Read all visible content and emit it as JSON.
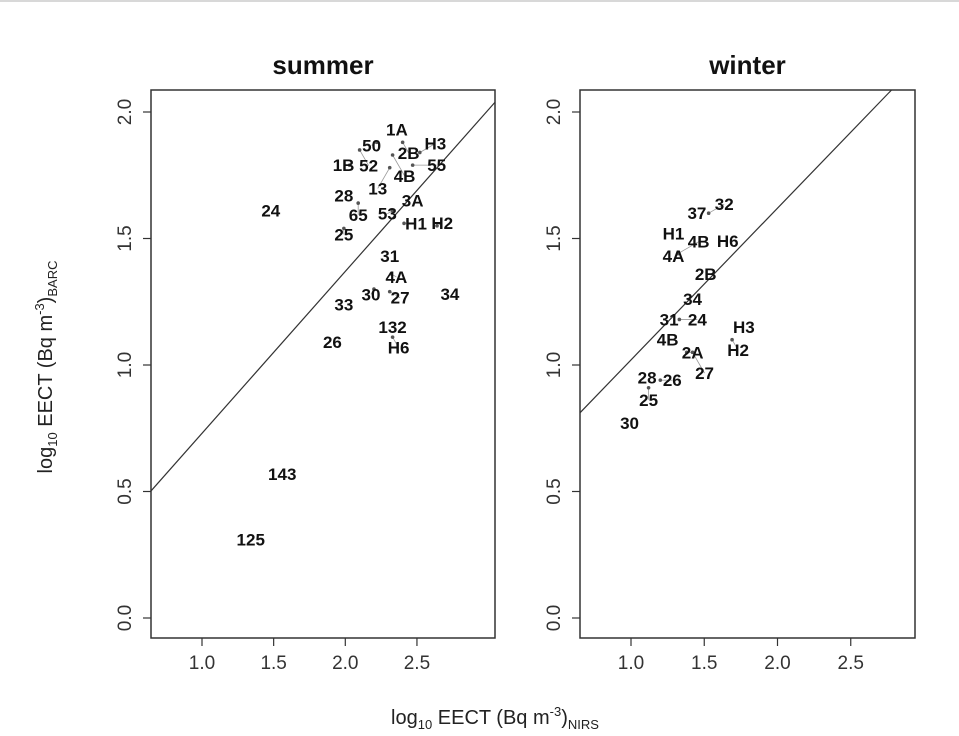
{
  "chart_data": [
    {
      "type": "scatter",
      "title": "summer",
      "xlim": [
        0.7,
        2.85
      ],
      "ylim": [
        -0.08,
        2.08
      ],
      "xticks": [
        "1.0",
        "1.5",
        "2.0",
        "2.5"
      ],
      "yticks": [
        "0.0",
        "0.5",
        "1.0",
        "1.5",
        "2.0"
      ],
      "line": {
        "intercept": 0.09,
        "slope": 0.64
      },
      "points": [
        {
          "label": "1A",
          "x": 2.36,
          "y": 1.93
        },
        {
          "label": "50",
          "x": 2.22,
          "y": 1.88
        },
        {
          "label": "2B",
          "x": 2.4,
          "y": 1.88
        },
        {
          "label": "52",
          "x": 2.1,
          "y": 1.85
        },
        {
          "label": "H3",
          "x": 2.52,
          "y": 1.84
        },
        {
          "label": "4B",
          "x": 2.33,
          "y": 1.83
        },
        {
          "label": "1B",
          "x": 2.03,
          "y": 1.79
        },
        {
          "label": "13",
          "x": 2.31,
          "y": 1.78
        },
        {
          "label": "55",
          "x": 2.47,
          "y": 1.79
        },
        {
          "label": "28",
          "x": 1.99,
          "y": 1.67
        },
        {
          "label": "65",
          "x": 2.09,
          "y": 1.64
        },
        {
          "label": "3A",
          "x": 2.47,
          "y": 1.65
        },
        {
          "label": "53",
          "x": 2.33,
          "y": 1.61
        },
        {
          "label": "H1",
          "x": 2.41,
          "y": 1.56
        },
        {
          "label": "H2",
          "x": 2.64,
          "y": 1.55
        },
        {
          "label": "24",
          "x": 1.48,
          "y": 1.61
        },
        {
          "label": "25",
          "x": 1.99,
          "y": 1.54
        },
        {
          "label": "31",
          "x": 2.31,
          "y": 1.43
        },
        {
          "label": "4A",
          "x": 2.32,
          "y": 1.36
        },
        {
          "label": "30",
          "x": 2.2,
          "y": 1.3
        },
        {
          "label": "27",
          "x": 2.31,
          "y": 1.29
        },
        {
          "label": "33",
          "x": 1.99,
          "y": 1.24
        },
        {
          "label": "34",
          "x": 2.73,
          "y": 1.28
        },
        {
          "label": "132",
          "x": 2.33,
          "y": 1.15
        },
        {
          "label": "H6",
          "x": 2.33,
          "y": 1.11
        },
        {
          "label": "26",
          "x": 1.91,
          "y": 1.09
        },
        {
          "label": "143",
          "x": 1.56,
          "y": 0.57
        },
        {
          "label": "125",
          "x": 1.34,
          "y": 0.31
        }
      ]
    },
    {
      "type": "scatter",
      "title": "winter",
      "xlim": [
        0.7,
        2.85
      ],
      "ylim": [
        -0.08,
        2.08
      ],
      "xticks": [
        "1.0",
        "1.5",
        "2.0",
        "2.5"
      ],
      "yticks": [
        "0.0",
        "0.5",
        "1.0",
        "1.5",
        "2.0"
      ],
      "line": {
        "intercept": 0.42,
        "slope": 0.6
      },
      "points": [
        {
          "label": "37",
          "x": 1.45,
          "y": 1.6
        },
        {
          "label": "32",
          "x": 1.53,
          "y": 1.6
        },
        {
          "label": "H1",
          "x": 1.29,
          "y": 1.52
        },
        {
          "label": "H6",
          "x": 1.66,
          "y": 1.49
        },
        {
          "label": "4A",
          "x": 1.29,
          "y": 1.43
        },
        {
          "label": "4B",
          "x": 1.32,
          "y": 1.44
        },
        {
          "label": "2B",
          "x": 1.51,
          "y": 1.36
        },
        {
          "label": "34",
          "x": 1.42,
          "y": 1.26
        },
        {
          "label": "31",
          "x": 1.26,
          "y": 1.18
        },
        {
          "label": "24",
          "x": 1.33,
          "y": 1.18
        },
        {
          "label": "4B",
          "x": 1.25,
          "y": 1.1
        },
        {
          "label": "2A",
          "x": 1.38,
          "y": 1.05
        },
        {
          "label": "27",
          "x": 1.42,
          "y": 1.05
        },
        {
          "label": "H3",
          "x": 1.77,
          "y": 1.15
        },
        {
          "label": "H2",
          "x": 1.69,
          "y": 1.1
        },
        {
          "label": "28",
          "x": 1.11,
          "y": 0.95
        },
        {
          "label": "26",
          "x": 1.2,
          "y": 0.94
        },
        {
          "label": "25",
          "x": 1.12,
          "y": 0.91
        },
        {
          "label": "30",
          "x": 0.99,
          "y": 0.77
        }
      ]
    }
  ],
  "axes": {
    "ylabel": {
      "main": "log",
      "sub": "10",
      "rest": " EECT (Bq m",
      "sup": "-3",
      "close": ")",
      "subscript": "BARC"
    },
    "xlabel": {
      "main": "log",
      "sub": "10",
      "rest": " EECT (Bq m",
      "sup": "-3",
      "close": ")",
      "subscript": "NIRS"
    }
  }
}
